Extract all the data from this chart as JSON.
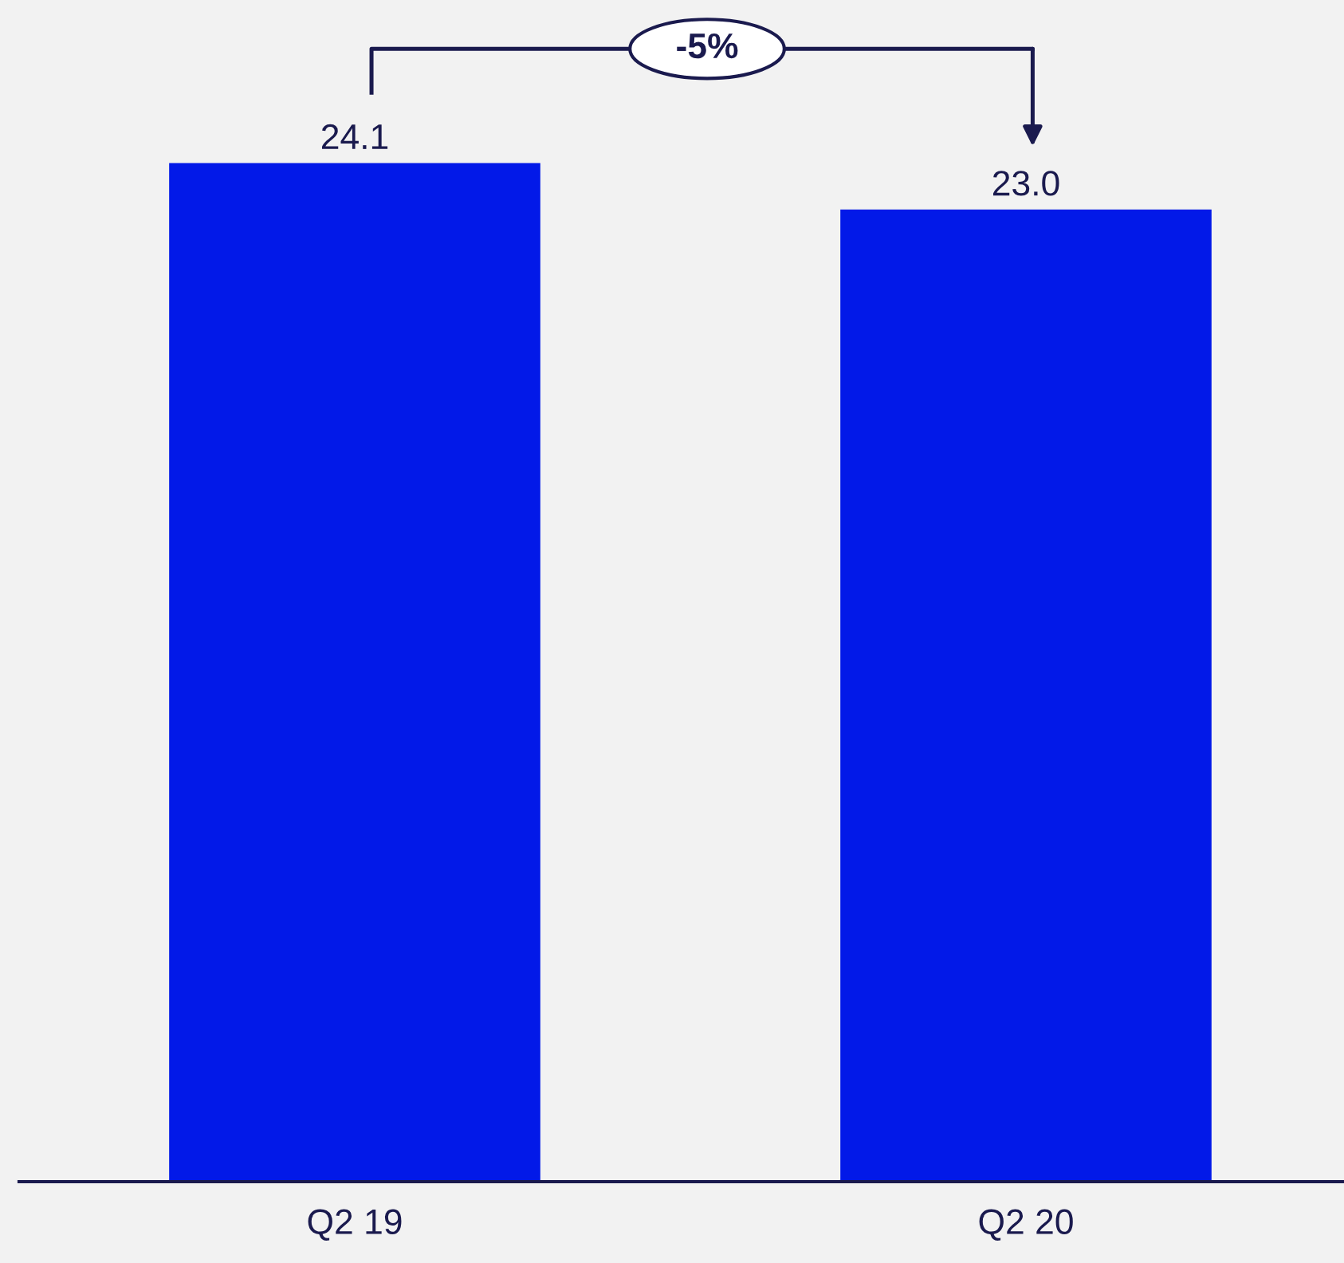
{
  "chart_data": {
    "type": "bar",
    "categories": [
      "Q2 19",
      "Q2 20"
    ],
    "values": [
      24.1,
      23.0
    ],
    "color": "#0219e8",
    "value_labels": [
      "24.1",
      "23.0"
    ],
    "annotations": [
      "-5%"
    ],
    "grid": false
  }
}
